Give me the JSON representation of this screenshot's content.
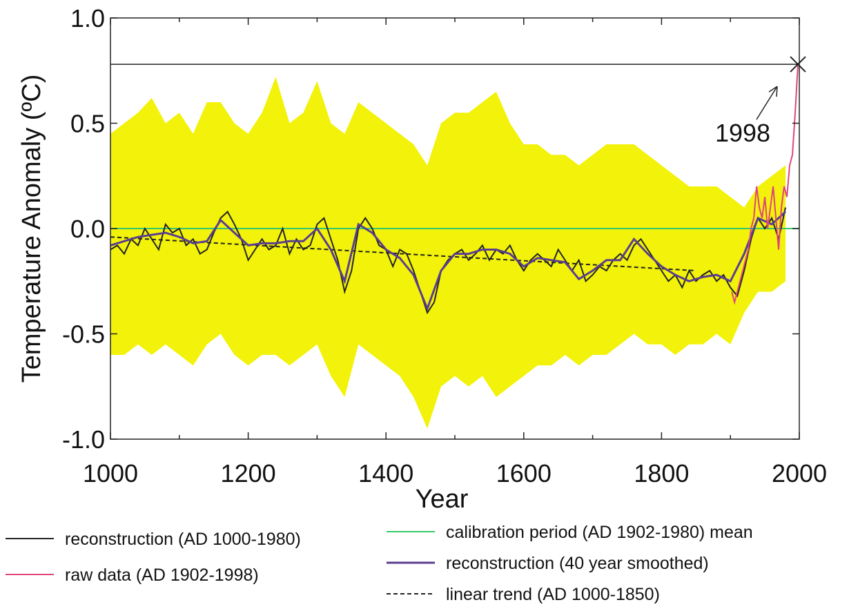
{
  "chart_data": {
    "type": "line",
    "xlabel": "Year",
    "ylabel": "Temperature Anomaly (ºC)",
    "xlim": [
      1000,
      2000
    ],
    "ylim": [
      -1,
      1
    ],
    "xticks": [
      1000,
      1200,
      1400,
      1600,
      1800,
      2000
    ],
    "x_minor_ticks": [
      1100,
      1300,
      1500,
      1700,
      1900
    ],
    "yticks": [
      {
        "value": 1,
        "label": "1.0"
      },
      {
        "value": 0.5,
        "label": "0.5"
      },
      {
        "value": 0,
        "label": "0.0"
      },
      {
        "value": -0.5,
        "label": "-0.5"
      },
      {
        "value": -1,
        "label": "-1.0"
      }
    ],
    "reference_line": 0.78,
    "annotation": {
      "text": "1998",
      "x": 1998,
      "y": 0.78
    },
    "uncertainty": {
      "color": "#f2f20a",
      "x": [
        1000,
        1020,
        1040,
        1060,
        1080,
        1100,
        1120,
        1140,
        1160,
        1180,
        1200,
        1220,
        1240,
        1260,
        1280,
        1300,
        1320,
        1340,
        1360,
        1380,
        1400,
        1420,
        1440,
        1460,
        1480,
        1500,
        1520,
        1540,
        1560,
        1580,
        1600,
        1620,
        1640,
        1660,
        1680,
        1700,
        1720,
        1740,
        1760,
        1780,
        1800,
        1820,
        1840,
        1860,
        1880,
        1900,
        1920,
        1940,
        1960,
        1980
      ],
      "upper": [
        0.45,
        0.5,
        0.55,
        0.62,
        0.5,
        0.55,
        0.45,
        0.6,
        0.6,
        0.5,
        0.45,
        0.55,
        0.72,
        0.5,
        0.55,
        0.7,
        0.5,
        0.45,
        0.6,
        0.55,
        0.5,
        0.45,
        0.4,
        0.3,
        0.5,
        0.55,
        0.55,
        0.6,
        0.65,
        0.5,
        0.4,
        0.4,
        0.35,
        0.35,
        0.3,
        0.35,
        0.4,
        0.4,
        0.4,
        0.35,
        0.3,
        0.25,
        0.2,
        0.2,
        0.2,
        0.15,
        0.1,
        0.2,
        0.25,
        0.3
      ],
      "lower": [
        -0.6,
        -0.6,
        -0.55,
        -0.6,
        -0.55,
        -0.6,
        -0.65,
        -0.55,
        -0.5,
        -0.6,
        -0.65,
        -0.6,
        -0.6,
        -0.65,
        -0.6,
        -0.55,
        -0.7,
        -0.8,
        -0.55,
        -0.6,
        -0.65,
        -0.7,
        -0.8,
        -0.95,
        -0.75,
        -0.7,
        -0.75,
        -0.7,
        -0.8,
        -0.75,
        -0.7,
        -0.65,
        -0.65,
        -0.6,
        -0.65,
        -0.6,
        -0.6,
        -0.55,
        -0.5,
        -0.55,
        -0.55,
        -0.6,
        -0.55,
        -0.55,
        -0.5,
        -0.55,
        -0.4,
        -0.3,
        -0.3,
        -0.25
      ]
    },
    "series": [
      {
        "name": "reconstruction (AD 1000-1980)",
        "color": "#222222",
        "dash": "solid",
        "x": [
          1000,
          1010,
          1020,
          1030,
          1040,
          1050,
          1060,
          1070,
          1080,
          1090,
          1100,
          1110,
          1120,
          1130,
          1140,
          1150,
          1160,
          1170,
          1180,
          1190,
          1200,
          1210,
          1220,
          1230,
          1240,
          1250,
          1260,
          1270,
          1280,
          1290,
          1300,
          1310,
          1320,
          1330,
          1340,
          1350,
          1360,
          1370,
          1380,
          1390,
          1400,
          1410,
          1420,
          1430,
          1440,
          1450,
          1460,
          1470,
          1480,
          1490,
          1500,
          1510,
          1520,
          1530,
          1540,
          1550,
          1560,
          1570,
          1580,
          1590,
          1600,
          1610,
          1620,
          1630,
          1640,
          1650,
          1660,
          1670,
          1680,
          1690,
          1700,
          1710,
          1720,
          1730,
          1740,
          1750,
          1760,
          1770,
          1780,
          1790,
          1800,
          1810,
          1820,
          1830,
          1840,
          1850,
          1860,
          1870,
          1880,
          1890,
          1900,
          1910,
          1920,
          1930,
          1940,
          1950,
          1960,
          1970,
          1980
        ],
        "values": [
          -0.1,
          -0.08,
          -0.12,
          -0.05,
          -0.08,
          0.0,
          -0.05,
          -0.1,
          0.02,
          -0.02,
          0.0,
          -0.08,
          -0.05,
          -0.12,
          -0.1,
          -0.02,
          0.05,
          0.08,
          0.02,
          -0.05,
          -0.15,
          -0.1,
          -0.05,
          -0.1,
          -0.08,
          0.0,
          -0.12,
          -0.05,
          -0.1,
          -0.08,
          0.02,
          0.05,
          -0.05,
          -0.15,
          -0.3,
          -0.2,
          0.0,
          0.05,
          0.0,
          -0.08,
          -0.1,
          -0.18,
          -0.1,
          -0.12,
          -0.2,
          -0.3,
          -0.4,
          -0.35,
          -0.2,
          -0.15,
          -0.12,
          -0.1,
          -0.15,
          -0.12,
          -0.08,
          -0.15,
          -0.1,
          -0.12,
          -0.08,
          -0.15,
          -0.2,
          -0.15,
          -0.12,
          -0.15,
          -0.18,
          -0.1,
          -0.15,
          -0.2,
          -0.15,
          -0.25,
          -0.22,
          -0.18,
          -0.2,
          -0.15,
          -0.12,
          -0.15,
          -0.08,
          -0.05,
          -0.1,
          -0.15,
          -0.2,
          -0.25,
          -0.22,
          -0.28,
          -0.2,
          -0.25,
          -0.22,
          -0.2,
          -0.25,
          -0.22,
          -0.28,
          -0.32,
          -0.2,
          -0.05,
          0.05,
          0.0,
          0.05,
          -0.05,
          0.1
        ]
      },
      {
        "name": "raw data (AD 1902-1998)",
        "color": "#e0457b",
        "dash": "solid",
        "x": [
          1902,
          1906,
          1910,
          1914,
          1918,
          1922,
          1926,
          1930,
          1934,
          1938,
          1942,
          1946,
          1950,
          1954,
          1958,
          1962,
          1966,
          1970,
          1974,
          1978,
          1982,
          1986,
          1990,
          1994,
          1998
        ],
        "values": [
          -0.3,
          -0.35,
          -0.3,
          -0.25,
          -0.2,
          -0.15,
          -0.1,
          0.0,
          0.05,
          0.2,
          0.1,
          0.05,
          0.15,
          0.0,
          0.1,
          0.2,
          0.05,
          -0.1,
          0.1,
          0.2,
          0.15,
          0.3,
          0.35,
          0.55,
          0.78
        ]
      },
      {
        "name": "calibration period (AD 1902-1980) mean",
        "color": "#35c96a",
        "dash": "solid",
        "x": [
          1000,
          2000
        ],
        "values": [
          0,
          0
        ]
      },
      {
        "name": "reconstruction (40 year smoothed)",
        "color": "#5b3d8f",
        "dash": "solid",
        "x": [
          1000,
          1020,
          1040,
          1060,
          1080,
          1100,
          1120,
          1140,
          1160,
          1180,
          1200,
          1220,
          1240,
          1260,
          1280,
          1300,
          1320,
          1340,
          1360,
          1380,
          1400,
          1420,
          1440,
          1460,
          1480,
          1500,
          1520,
          1540,
          1560,
          1580,
          1600,
          1620,
          1640,
          1660,
          1680,
          1700,
          1720,
          1740,
          1760,
          1780,
          1800,
          1820,
          1840,
          1860,
          1880,
          1900,
          1920,
          1940,
          1960,
          1980
        ],
        "values": [
          -0.08,
          -0.06,
          -0.04,
          -0.03,
          -0.02,
          -0.04,
          -0.07,
          -0.06,
          0.04,
          -0.02,
          -0.08,
          -0.07,
          -0.07,
          -0.06,
          -0.06,
          0.0,
          -0.1,
          -0.25,
          0.02,
          -0.02,
          -0.1,
          -0.14,
          -0.22,
          -0.38,
          -0.2,
          -0.12,
          -0.12,
          -0.1,
          -0.1,
          -0.12,
          -0.18,
          -0.14,
          -0.15,
          -0.16,
          -0.24,
          -0.2,
          -0.15,
          -0.15,
          -0.05,
          -0.12,
          -0.18,
          -0.22,
          -0.25,
          -0.23,
          -0.22,
          -0.25,
          -0.12,
          0.05,
          0.02,
          0.08
        ]
      },
      {
        "name": "linear trend (AD 1000-1850)",
        "color": "#222222",
        "dash": "dashed",
        "x": [
          1000,
          1850
        ],
        "values": [
          -0.04,
          -0.2
        ]
      }
    ]
  }
}
